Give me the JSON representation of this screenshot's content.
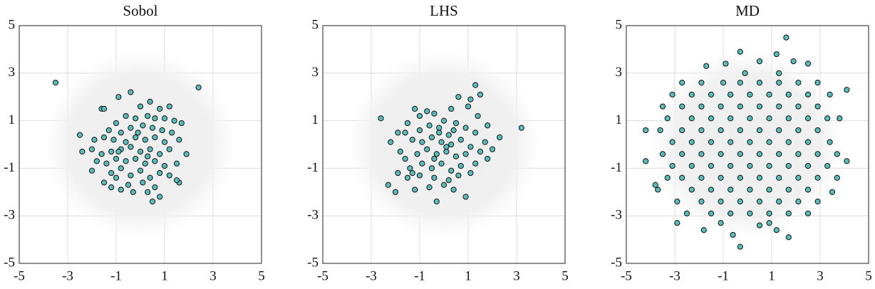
{
  "chart_data": [
    {
      "type": "scatter",
      "title": "Sobol",
      "color": "#5bbcbc",
      "grid": true,
      "xlim": [
        -5,
        5
      ],
      "ylim": [
        -5,
        5
      ],
      "xticks": [
        -5,
        -3,
        -1,
        1,
        3,
        5
      ],
      "yticks": [
        -5,
        -3,
        -1,
        1,
        3,
        5
      ],
      "x": [
        -3.5,
        2.4,
        -1.6,
        -1.5,
        -0.9,
        -0.4,
        0,
        0.4,
        0.8,
        1.2,
        -0.6,
        -0.2,
        0.3,
        0.6,
        1.0,
        1.4,
        -1.0,
        -1.3,
        -0.8,
        -0.4,
        0.1,
        0.5,
        0.9,
        1.3,
        1.7,
        -2.5,
        -1.9,
        -1.5,
        -1.1,
        -0.6,
        -0.2,
        0.2,
        0.6,
        1.0,
        1.6,
        -2.0,
        -1.6,
        -1.2,
        -0.8,
        -0.4,
        0,
        0.4,
        0.8,
        1.2,
        1.9,
        -2.4,
        -1.8,
        -1.4,
        -1.0,
        -0.6,
        -0.2,
        0.2,
        0.6,
        1.0,
        1.5,
        -2.0,
        -1.2,
        -0.8,
        -0.4,
        0,
        0.4,
        0.8,
        1.2,
        -1.5,
        -1.0,
        -0.5,
        0.1,
        0.6,
        1.6,
        -1.2,
        -0.3,
        0.3,
        0.8,
        0.5,
        -0.8,
        1.5,
        -0.1,
        0.3,
        -0.9
      ],
      "y": [
        2.6,
        2.4,
        1.5,
        1.5,
        2.0,
        2.2,
        1.6,
        1.8,
        1.5,
        1.6,
        1.2,
        1.1,
        1.2,
        1.1,
        1.1,
        1.0,
        0.9,
        0.6,
        0.5,
        0.7,
        0.8,
        0.7,
        0.6,
        0.5,
        0.9,
        0.4,
        0.2,
        0.3,
        0.2,
        0.1,
        0.3,
        0.2,
        0.3,
        0.1,
        0.2,
        -0.2,
        -0.4,
        -0.3,
        -0.2,
        -0.1,
        -0.3,
        -0.2,
        -0.4,
        -0.2,
        -0.4,
        -0.3,
        -0.7,
        -0.8,
        -0.6,
        -0.7,
        -0.6,
        -0.8,
        -0.7,
        -0.9,
        -0.8,
        -1.1,
        -1.2,
        -1.0,
        -1.3,
        -1.1,
        -1.4,
        -1.2,
        -1.3,
        -1.6,
        -1.4,
        -1.7,
        -1.6,
        -1.8,
        -1.6,
        -1.8,
        -2.0,
        -2.0,
        -2.2,
        -2.4,
        -1.9,
        -1.5,
        0.5,
        -0.5,
        -0.3
      ]
    },
    {
      "type": "scatter",
      "title": "LHS",
      "color": "#5bbcbc",
      "grid": true,
      "xlim": [
        -5,
        5
      ],
      "ylim": [
        -5,
        5
      ],
      "xticks": [
        -5,
        -3,
        -1,
        1,
        3,
        5
      ],
      "yticks": [
        -5,
        -3,
        -1,
        1,
        3,
        5
      ],
      "x": [
        -2.6,
        -1.9,
        -1.6,
        -2.2,
        -1.8,
        -1.2,
        -1.0,
        -0.7,
        -0.4,
        0,
        0.3,
        0.6,
        1.0,
        1.1,
        1.3,
        1.5,
        1.4,
        1.8,
        2.3,
        3.2,
        -1.5,
        -1.0,
        -0.6,
        -0.2,
        0.2,
        0.5,
        0.9,
        1.3,
        1.7,
        -1.3,
        -0.9,
        -0.5,
        -0.1,
        0.3,
        0.7,
        1.1,
        1.5,
        2.0,
        -1.6,
        -1.1,
        -0.7,
        -0.3,
        0.1,
        0.5,
        0.9,
        1.3,
        1.8,
        -1.9,
        -1.4,
        -0.9,
        -0.5,
        -0.1,
        0.3,
        0.7,
        1.1,
        -2.3,
        -1.5,
        -1.0,
        -0.4,
        0.2,
        0.6,
        -2.0,
        -1.2,
        -0.6,
        0.0,
        0.4,
        -0.3,
        0.9,
        -0.2,
        0.1,
        -0.4,
        0.4,
        -1.3
      ],
      "y": [
        1.1,
        0.5,
        0.5,
        0.1,
        -0.3,
        1.5,
        1.2,
        1.4,
        1.3,
        1.0,
        1.5,
        2.0,
        1.6,
        1.9,
        2.5,
        2.1,
        1.2,
        0.8,
        0.3,
        0.7,
        0.9,
        0.6,
        0.8,
        0.7,
        0.4,
        0.9,
        0.7,
        0.5,
        0.1,
        0.2,
        0.1,
        0.3,
        0.1,
        0.0,
        0.2,
        -0.1,
        -0.3,
        -0.2,
        -0.6,
        -0.4,
        -0.2,
        -0.4,
        -0.3,
        -0.5,
        -0.4,
        -0.8,
        -0.6,
        -1.2,
        -1.0,
        -0.8,
        -1.0,
        -0.8,
        -1.1,
        -0.9,
        -1.2,
        -1.7,
        -1.4,
        -1.3,
        -1.4,
        -1.5,
        -1.3,
        -2.0,
        -1.9,
        -1.8,
        -1.7,
        -1.9,
        -2.4,
        -2.2,
        0.5,
        -0.1,
        -0.6,
        0.6,
        -1.2
      ]
    },
    {
      "type": "scatter",
      "title": "MD",
      "color": "#5bbcbc",
      "grid": true,
      "xlim": [
        -5,
        5
      ],
      "ylim": [
        -5,
        5
      ],
      "xticks": [
        -5,
        -3,
        -1,
        1,
        3,
        5
      ],
      "yticks": [
        -5,
        -3,
        -1,
        1,
        3,
        5
      ],
      "x": [
        -2.7,
        -1.9,
        -1.0,
        -0.3,
        0.5,
        1.3,
        2.1,
        2.9,
        -3.1,
        -2.3,
        -1.5,
        -0.7,
        0.1,
        0.9,
        1.7,
        2.5,
        3.4,
        -3.5,
        -2.7,
        -1.9,
        -1.1,
        -0.3,
        0.5,
        1.3,
        2.1,
        2.9,
        -3.3,
        -2.3,
        -1.5,
        -0.7,
        0.1,
        0.9,
        1.7,
        2.5,
        3.3,
        3.8,
        -3.6,
        -2.7,
        -1.9,
        -1.1,
        -0.3,
        0.5,
        1.3,
        2.1,
        2.9,
        -3.1,
        -2.3,
        -1.5,
        -0.7,
        0.1,
        0.9,
        1.7,
        2.5,
        3.4,
        -3.5,
        -2.7,
        -1.9,
        -1.1,
        -0.3,
        0.5,
        1.3,
        2.1,
        2.9,
        3.7,
        -3.1,
        -2.3,
        -1.5,
        -0.7,
        0.1,
        0.9,
        1.7,
        2.5,
        3.3,
        -3.3,
        -2.7,
        -1.9,
        -1.1,
        -0.3,
        0.5,
        1.3,
        2.1,
        2.9,
        3.7,
        -3.7,
        -2.3,
        -1.5,
        -0.7,
        0.1,
        0.9,
        1.7,
        2.5,
        -2.9,
        -1.9,
        -1.1,
        -0.3,
        0.5,
        1.3,
        2.1,
        2.9,
        -2.5,
        -1.5,
        -0.7,
        0.1,
        0.9,
        1.7,
        2.5,
        -2.9,
        -1.1,
        0.9,
        1.6,
        -0.3,
        1.2,
        -0.9,
        0.5,
        1.9,
        -1.7,
        2.5,
        -0.1,
        1.3,
        -4.2,
        -4.2,
        4.1,
        4.1,
        -3.8,
        -0.3,
        1.7,
        -1.8,
        -0.6,
        0.5,
        1.2,
        3.5
      ],
      "y": [
        2.6,
        2.6,
        2.6,
        2.6,
        2.6,
        2.6,
        2.6,
        2.6,
        2.1,
        2.1,
        2.1,
        2.1,
        2.1,
        2.1,
        2.1,
        2.1,
        2.1,
        1.6,
        1.6,
        1.6,
        1.6,
        1.6,
        1.6,
        1.6,
        1.6,
        1.6,
        1.1,
        1.1,
        1.1,
        1.1,
        1.1,
        1.1,
        1.1,
        1.1,
        1.1,
        1.1,
        0.6,
        0.6,
        0.6,
        0.6,
        0.6,
        0.6,
        0.6,
        0.6,
        0.6,
        0.1,
        0.1,
        0.1,
        0.1,
        0.1,
        0.1,
        0.1,
        0.1,
        0.1,
        -0.4,
        -0.4,
        -0.4,
        -0.4,
        -0.4,
        -0.4,
        -0.4,
        -0.4,
        -0.4,
        -0.4,
        -0.9,
        -0.9,
        -0.9,
        -0.9,
        -0.9,
        -0.9,
        -0.9,
        -0.9,
        -0.9,
        -1.4,
        -1.4,
        -1.4,
        -1.4,
        -1.4,
        -1.4,
        -1.4,
        -1.4,
        -1.4,
        -1.4,
        -1.9,
        -1.9,
        -1.9,
        -1.9,
        -1.9,
        -1.9,
        -1.9,
        -1.9,
        -2.4,
        -2.4,
        -2.4,
        -2.4,
        -2.4,
        -2.4,
        -2.4,
        -2.4,
        -2.9,
        -2.9,
        -2.9,
        -2.9,
        -2.9,
        -2.9,
        -2.9,
        -3.3,
        -3.3,
        -3.3,
        4.5,
        3.9,
        3.8,
        3.4,
        3.5,
        3.5,
        3.3,
        3.4,
        3.0,
        3.0,
        0.6,
        -0.7,
        2.3,
        -0.7,
        -1.7,
        -4.3,
        -3.9,
        -3.6,
        -3.8,
        -3.4,
        -3.6,
        -2.0
      ]
    }
  ]
}
